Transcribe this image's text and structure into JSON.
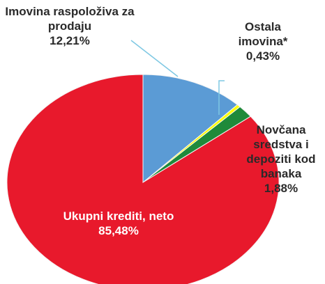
{
  "chart_data": {
    "type": "pie",
    "categories": [
      "Imovina raspoloživa za prodaju",
      "Ostala imovina*",
      "Novčana sredstva i depoziti kod banaka",
      "Ukupni krediti, neto"
    ],
    "values": [
      12.21,
      0.43,
      1.88,
      85.48
    ],
    "value_labels": [
      "12,21%",
      "0,43%",
      "1,88%",
      "85,48%"
    ],
    "colors": [
      "#5b9bd5",
      "#ffff00",
      "#1f8a3a",
      "#e8192c"
    ]
  }
}
